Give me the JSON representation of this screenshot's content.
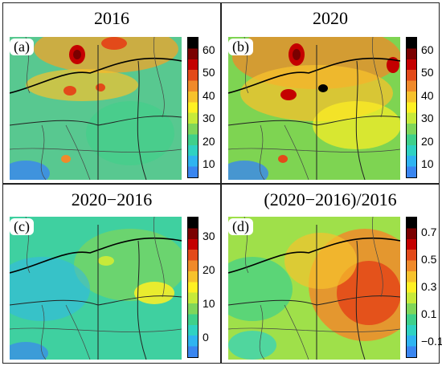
{
  "panels": [
    {
      "id": "a",
      "title": "2016",
      "label": "(a)",
      "ticks": [
        "60",
        "50",
        "40",
        "30",
        "20",
        "10"
      ],
      "colors": [
        "#000000",
        "#7a0000",
        "#c40000",
        "#e34a1a",
        "#f08a2a",
        "#f7c22c",
        "#fff023",
        "#c7ea3a",
        "#7fd65a",
        "#3fd08a",
        "#2fd2c2",
        "#2fb4f0",
        "#3a86f0"
      ],
      "base": "#58c890"
    },
    {
      "id": "b",
      "title": "2020",
      "label": "(b)",
      "ticks": [
        "60",
        "50",
        "40",
        "30",
        "20",
        "10"
      ],
      "colors": [
        "#000000",
        "#7a0000",
        "#c40000",
        "#e34a1a",
        "#f08a2a",
        "#f7c22c",
        "#fff023",
        "#c7ea3a",
        "#7fd65a",
        "#3fd08a",
        "#2fd2c2",
        "#2fb4f0",
        "#3a86f0"
      ],
      "base": "#7ed452"
    },
    {
      "id": "c",
      "title": "2020−2016",
      "label": "(c)",
      "ticks": [
        "30",
        "20",
        "10",
        "0"
      ],
      "colors": [
        "#000000",
        "#7a0000",
        "#c40000",
        "#e34a1a",
        "#f08a2a",
        "#f7c22c",
        "#fff023",
        "#c7ea3a",
        "#7fd65a",
        "#3fd08a",
        "#2fd2c2",
        "#2fb4f0",
        "#3a86f0"
      ],
      "base": "#3fd0a0"
    },
    {
      "id": "d",
      "title": "(2020−2016)/2016",
      "label": "(d)",
      "ticks": [
        "0.7",
        "0.5",
        "0.3",
        "0.1",
        "−0.1"
      ],
      "colors": [
        "#000000",
        "#7a0000",
        "#c40000",
        "#e34a1a",
        "#f08a2a",
        "#f7c22c",
        "#fff023",
        "#c7ea3a",
        "#7fd65a",
        "#3fd08a",
        "#2fd2c2",
        "#2fb4f0",
        "#3a86f0"
      ],
      "base": "#9fe04a"
    }
  ]
}
